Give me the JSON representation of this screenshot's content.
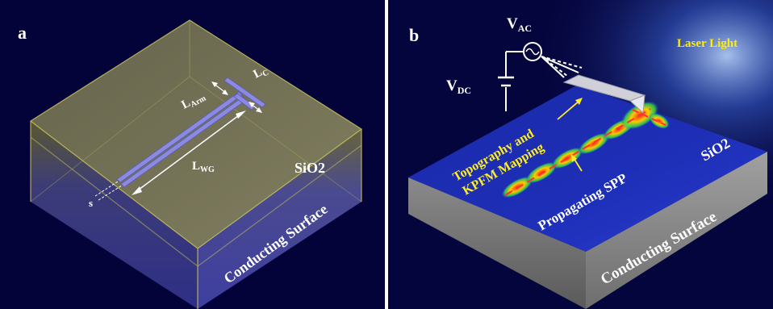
{
  "panel_a": {
    "letter": "a",
    "sio2": "SiO2",
    "surface": "Conducting Surface",
    "l_arm": "L",
    "l_arm_sub": "Arm",
    "l_c": "L",
    "l_c_sub": "C",
    "l_wg": "L",
    "l_wg_sub": "WG",
    "s": "s"
  },
  "panel_b": {
    "letter": "b",
    "v_ac": "V",
    "v_ac_sub": "AC",
    "v_dc": "V",
    "v_dc_sub": "DC",
    "laser": "Laser Light",
    "topo_line1": "Topography and",
    "topo_line2": "KPFM Mapping",
    "spp": "Propagating SPP",
    "sio2": "SiO2",
    "surface": "Conducting Surface"
  },
  "colors": {
    "background": "#03033a",
    "sio2_fill": "#8c8a5e",
    "sio2_edge": "#c9c45a",
    "substrate_side": "#3a3a8a",
    "waveguide": "#8a8ae0",
    "annotation_yellow": "#ffee22",
    "laser_yellow": "#ffee00"
  }
}
